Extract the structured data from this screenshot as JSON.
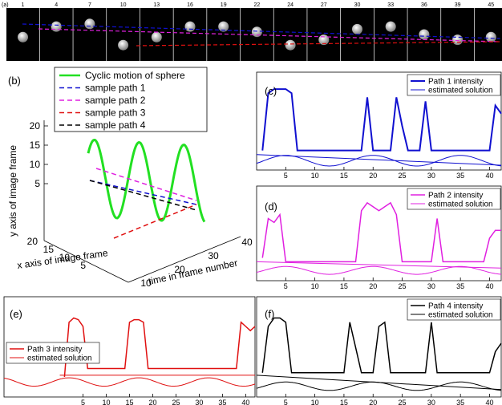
{
  "colors": {
    "blue": "#1010d0",
    "magenta": "#e020e0",
    "red": "#e01010",
    "black": "#000000",
    "green": "#22e022"
  },
  "panel_a": {
    "label": "(a)",
    "frames": [
      "1",
      "4",
      "7",
      "10",
      "13",
      "16",
      "19",
      "22",
      "24",
      "27",
      "30",
      "33",
      "36",
      "39",
      "45"
    ],
    "sphere_heights": [
      0.55,
      0.35,
      0.3,
      0.7,
      0.55,
      0.35,
      0.35,
      0.45,
      0.7,
      0.6,
      0.4,
      0.35,
      0.5,
      0.6,
      0.55
    ]
  },
  "panel_b": {
    "label": "(b)",
    "legend": [
      {
        "name": "Cyclic motion of sphere",
        "color": "green",
        "style": "solid"
      },
      {
        "name": "sample path 1",
        "color": "blue",
        "style": "dashed"
      },
      {
        "name": "sample path 2",
        "color": "magenta",
        "style": "dashed"
      },
      {
        "name": "sample path 3",
        "color": "red",
        "style": "dashed"
      },
      {
        "name": "sample path 4",
        "color": "black",
        "style": "dashed"
      }
    ],
    "ylabel": "y axis of image frame",
    "xlabel": "x axis of image frame",
    "zlabel": "time in frame number",
    "y_ticks": [
      "20",
      "15",
      "10",
      "5"
    ],
    "x_ticks": [
      "20",
      "15",
      "10",
      "5"
    ],
    "t_ticks": [
      "10",
      "20",
      "30",
      "40"
    ]
  },
  "chart_data": [
    {
      "id": "c",
      "type": "line",
      "label": "(c)",
      "series": [
        {
          "name": "Path 1 intensity",
          "color": "blue",
          "width": 2,
          "x": [
            1,
            2,
            3,
            4,
            5,
            6,
            7,
            8,
            9,
            10,
            11,
            12,
            13,
            14,
            15,
            16,
            17,
            18,
            19,
            20,
            21,
            22,
            23,
            24,
            25,
            26,
            27,
            28,
            29,
            30,
            31,
            32,
            33,
            34,
            35,
            36,
            37,
            38,
            39,
            40,
            41,
            42
          ],
          "y": [
            0.2,
            0.9,
            0.95,
            0.95,
            0.95,
            0.9,
            0.2,
            0.2,
            0.2,
            0.2,
            0.2,
            0.2,
            0.2,
            0.2,
            0.2,
            0.2,
            0.2,
            0.2,
            0.85,
            0.2,
            0.2,
            0.2,
            0.2,
            0.85,
            0.5,
            0.2,
            0.2,
            0.2,
            0.8,
            0.2,
            0.2,
            0.2,
            0.2,
            0.2,
            0.2,
            0.2,
            0.2,
            0.2,
            0.2,
            0.2,
            0.75,
            0.65
          ]
        },
        {
          "name": "estimated solution",
          "color": "blue",
          "width": 1,
          "kind": "sine",
          "base": 0.1,
          "amp": 0.13,
          "period": 15,
          "phase": 5,
          "trend": [
            0.15,
            0.02
          ]
        }
      ],
      "xticks": [
        "5",
        "10",
        "15",
        "20",
        "25",
        "30",
        "35",
        "40"
      ],
      "xlim": [
        0,
        42
      ]
    },
    {
      "id": "d",
      "type": "line",
      "label": "(d)",
      "series": [
        {
          "name": "Path 2 intensity",
          "color": "magenta",
          "width": 1.5,
          "x": [
            1,
            2,
            3,
            4,
            5,
            6,
            7,
            8,
            9,
            10,
            11,
            12,
            13,
            14,
            15,
            16,
            17,
            18,
            19,
            20,
            21,
            22,
            23,
            24,
            25,
            26,
            27,
            28,
            29,
            30,
            31,
            32,
            33,
            34,
            35,
            36,
            37,
            38,
            39,
            40,
            41,
            42
          ],
          "y": [
            0.25,
            0.75,
            0.7,
            0.8,
            0.2,
            0.2,
            0.2,
            0.2,
            0.2,
            0.2,
            0.2,
            0.2,
            0.2,
            0.2,
            0.2,
            0.2,
            0.2,
            0.85,
            0.95,
            0.9,
            0.85,
            0.9,
            0.95,
            0.8,
            0.2,
            0.2,
            0.2,
            0.2,
            0.2,
            0.2,
            0.75,
            0.2,
            0.2,
            0.2,
            0.2,
            0.2,
            0.2,
            0.2,
            0.2,
            0.5,
            0.6,
            0.6
          ]
        },
        {
          "name": "estimated solution",
          "color": "magenta",
          "width": 1,
          "kind": "sine",
          "base": 0.1,
          "amp": 0.1,
          "period": 15,
          "phase": 5,
          "trend": [
            0.2,
            0.12
          ]
        }
      ],
      "xticks": [
        "5",
        "10",
        "15",
        "20",
        "25",
        "30",
        "35",
        "40"
      ],
      "xlim": [
        0,
        42
      ]
    },
    {
      "id": "e",
      "type": "line",
      "label": "(e)",
      "series": [
        {
          "name": "Path 3 intensity",
          "color": "red",
          "width": 1.5,
          "x": [
            1,
            2,
            3,
            4,
            5,
            6,
            7,
            8,
            9,
            10,
            11,
            12,
            13,
            14,
            15,
            16,
            17,
            18,
            19,
            20,
            21,
            22,
            23,
            24,
            25,
            26,
            27,
            28,
            29,
            30,
            31,
            32,
            33,
            34,
            35,
            36,
            37,
            38,
            39,
            40,
            41,
            42
          ],
          "y": [
            0.2,
            0.85,
            0.9,
            0.88,
            0.8,
            0.3,
            0.3,
            0.3,
            0.3,
            0.3,
            0.3,
            0.3,
            0.3,
            0.3,
            0.85,
            0.88,
            0.88,
            0.85,
            0.3,
            0.3,
            0.3,
            0.3,
            0.3,
            0.3,
            0.3,
            0.3,
            0.3,
            0.3,
            0.3,
            0.3,
            0.3,
            0.3,
            0.3,
            0.3,
            0.3,
            0.3,
            0.3,
            0.3,
            0.85,
            0.8,
            0.75,
            0.8
          ]
        },
        {
          "name": "estimated solution",
          "color": "red",
          "width": 1,
          "kind": "sine",
          "base": 0.15,
          "amp": 0.1,
          "period": 15,
          "phase": 2,
          "trend": [
            0.22,
            0.22
          ]
        }
      ],
      "xticks": [
        "5",
        "10",
        "15",
        "20",
        "25",
        "30",
        "35",
        "40"
      ],
      "xlim": [
        -12,
        42
      ]
    },
    {
      "id": "f",
      "type": "line",
      "label": "(f)",
      "series": [
        {
          "name": "Path 4 intensity",
          "color": "black",
          "width": 1.5,
          "x": [
            1,
            2,
            3,
            4,
            5,
            6,
            7,
            8,
            9,
            10,
            11,
            12,
            13,
            14,
            15,
            16,
            17,
            18,
            19,
            20,
            21,
            22,
            23,
            24,
            25,
            26,
            27,
            28,
            29,
            30,
            31,
            32,
            33,
            34,
            35,
            36,
            37,
            38,
            39,
            40,
            41,
            42
          ],
          "y": [
            0.25,
            0.8,
            0.9,
            0.9,
            0.85,
            0.25,
            0.25,
            0.25,
            0.25,
            0.25,
            0.25,
            0.25,
            0.25,
            0.25,
            0.25,
            0.85,
            0.55,
            0.25,
            0.25,
            0.25,
            0.8,
            0.85,
            0.25,
            0.25,
            0.25,
            0.25,
            0.25,
            0.25,
            0.25,
            0.85,
            0.25,
            0.25,
            0.25,
            0.25,
            0.25,
            0.25,
            0.25,
            0.25,
            0.25,
            0.25,
            0.5,
            0.6
          ]
        },
        {
          "name": "estimated solution",
          "color": "black",
          "width": 1,
          "kind": "sine",
          "base": 0.1,
          "amp": 0.1,
          "period": 15,
          "phase": 5,
          "trend": [
            0.22,
            0.05
          ]
        }
      ],
      "xticks": [
        "5",
        "10",
        "15",
        "20",
        "25",
        "30",
        "35",
        "40"
      ],
      "xlim": [
        0,
        42
      ]
    }
  ]
}
